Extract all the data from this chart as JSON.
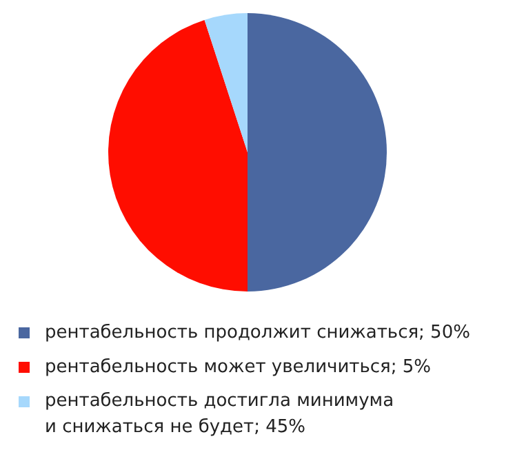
{
  "chart_data": {
    "type": "pie",
    "categories": [
      "рентабельность продолжит снижаться; 50%",
      "рентабельность может увеличиться; 5%",
      "рентабельность достигла минимума\nи снижаться не будет; 45%"
    ],
    "values": [
      50,
      45,
      5
    ],
    "colors": [
      "#4a67a0",
      "#ff0d00",
      "#a6d8fc"
    ],
    "legend": "bottom"
  }
}
